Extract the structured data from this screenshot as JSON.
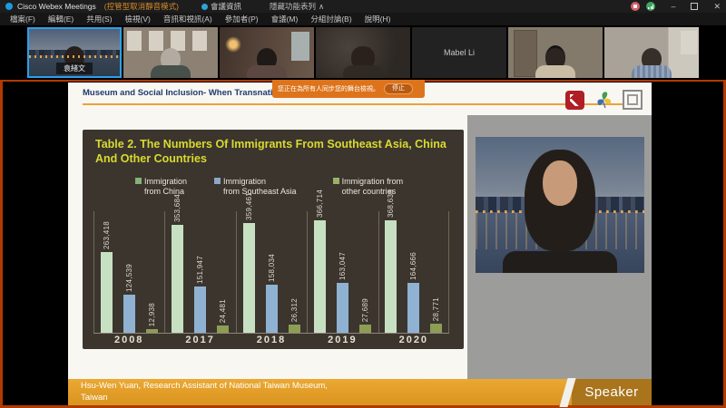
{
  "titlebar": {
    "app_title": "Cisco Webex Meetings",
    "mode_badge": "(控管型取消靜音模式)",
    "meeting_info": "會議資訊",
    "hide_menubar": "隱藏功能表列",
    "hide_chevron": "∧"
  },
  "icons": {
    "minimize": "–",
    "close": "✕"
  },
  "menubar": {
    "items": [
      "檔案(F)",
      "編輯(E)",
      "共用(S)",
      "檢視(V)",
      "音訊和視訊(A)",
      "參加者(P)",
      "會議(M)",
      "分組討論(B)",
      "說明(H)"
    ]
  },
  "filmstrip": {
    "participants": [
      {
        "name": "袁緒文",
        "active": true,
        "camera_off": false
      },
      {
        "name": "",
        "active": false,
        "camera_off": false
      },
      {
        "name": "",
        "active": false,
        "camera_off": false
      },
      {
        "name": "",
        "active": false,
        "camera_off": false
      },
      {
        "name": "Mabel Li",
        "active": false,
        "camera_off": true
      },
      {
        "name": "",
        "active": false,
        "camera_off": false
      },
      {
        "name": "",
        "active": false,
        "camera_off": false
      }
    ]
  },
  "share_banner": {
    "message": "您正在為所有人同步您的舞台檢視。",
    "stop_button": "停止"
  },
  "slide": {
    "header": "Museum and Social Inclusion- When Transnational Migration Arrives....",
    "footer_line1": "Hsu-Wen Yuan, Research Assistant of National Taiwan Museum,",
    "footer_line2": "Taiwan",
    "speaker_label": "Speaker"
  },
  "colors": {
    "share_border": "#b13a00",
    "active_speaker_border": "#2da0e8",
    "slide_accent_orange": "#e9a23a",
    "chart_panel_bg": "#3b352e",
    "chart_title_yellow": "#d8da2f",
    "banner_orange": "#dd741c"
  },
  "chart_data": {
    "type": "bar",
    "title": "Table 2. The Numbers Of Immigrants From Southeast Asia, China And Other Countries",
    "categories": [
      "2008",
      "2017",
      "2018",
      "2019",
      "2020"
    ],
    "series": [
      {
        "name": "Immigration from China",
        "color": "#c7e0c2",
        "legend_color": "#84b177",
        "values": [
          263418,
          353684,
          359461,
          366714,
          368638
        ]
      },
      {
        "name": "Immigration from Southeast Asia",
        "color": "#8fb2d3",
        "legend_color": "#8aa8c4",
        "values": [
          124539,
          151947,
          158034,
          163047,
          164666
        ]
      },
      {
        "name": "Immigration from other countries",
        "color": "#8d9d54",
        "legend_color": "#9cb068",
        "values": [
          12938,
          24481,
          26312,
          27689,
          28771
        ]
      }
    ],
    "legend_lines": [
      [
        "Immigration",
        "from China"
      ],
      [
        "Immigration",
        "from Southeast Asia"
      ],
      [
        "Immigration from",
        "other countries"
      ]
    ],
    "xlabel": "",
    "ylabel": "",
    "ylim": [
      0,
      380000
    ],
    "legend_position": "top",
    "grid": "vertical group separators",
    "value_labels": "rotated 90° above each bar, thousands-separated"
  }
}
